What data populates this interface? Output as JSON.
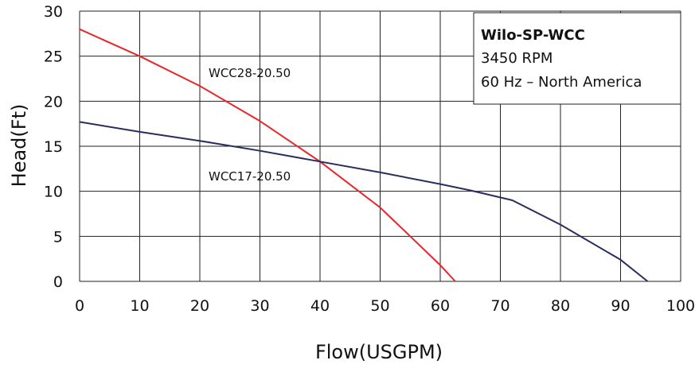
{
  "chart_data": {
    "type": "line",
    "xlabel": "Flow(USGPM)",
    "ylabel": "Head(Ft)",
    "xlim": [
      0,
      100
    ],
    "ylim": [
      0,
      30
    ],
    "x_ticks": [
      "0",
      "10",
      "20",
      "30",
      "40",
      "50",
      "60",
      "70",
      "80",
      "90",
      "100"
    ],
    "y_ticks": [
      "0",
      "5",
      "10",
      "15",
      "20",
      "25",
      "30"
    ],
    "grid": true,
    "legend_box": {
      "placement": "top-right",
      "title": "Wilo-SP-WCC",
      "lines": [
        "3450 RPM",
        "60 Hz – North America"
      ]
    },
    "series": [
      {
        "name": "WCC28-20.50",
        "color": "#e8262b",
        "x": [
          0,
          10,
          20,
          30,
          40,
          50,
          55,
          60,
          62.5
        ],
        "y": [
          28,
          25,
          21.7,
          17.8,
          13.3,
          8.2,
          5.0,
          1.8,
          0
        ]
      },
      {
        "name": "WCC17-20.50",
        "color": "#2a2d5e",
        "x": [
          0,
          10,
          20,
          30,
          40,
          50,
          60,
          65,
          72,
          80,
          90,
          94.5
        ],
        "y": [
          17.7,
          16.6,
          15.6,
          14.5,
          13.3,
          12.1,
          10.8,
          10.1,
          9.0,
          6.3,
          2.4,
          0
        ]
      }
    ]
  }
}
